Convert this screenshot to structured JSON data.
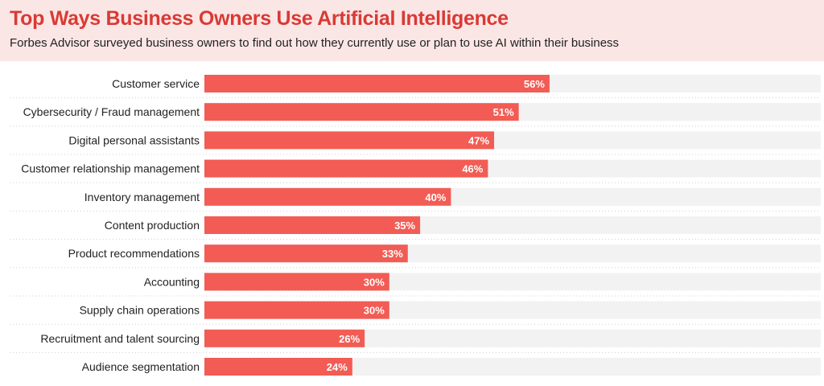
{
  "header": {
    "title": "Top Ways Business Owners Use Artificial Intelligence",
    "subtitle": "Forbes Advisor surveyed business owners to find out how they currently use or plan to use AI within their business"
  },
  "colors": {
    "accent": "#f25c54",
    "title": "#d93a34",
    "track": "#f2f2f2",
    "header_bg": "#fbe6e6"
  },
  "chart_data": {
    "type": "bar",
    "orientation": "horizontal",
    "title": "Top Ways Business Owners Use Artificial Intelligence",
    "subtitle": "Forbes Advisor surveyed business owners to find out how they currently use or plan to use AI within their business",
    "categories": [
      "Customer service",
      "Cybersecurity / Fraud management",
      "Digital personal assistants",
      "Customer relationship management",
      "Inventory management",
      "Content production",
      "Product recommendations",
      "Accounting",
      "Supply chain operations",
      "Recruitment and talent sourcing",
      "Audience segmentation"
    ],
    "values": [
      56,
      51,
      47,
      46,
      40,
      35,
      33,
      30,
      30,
      26,
      24
    ],
    "value_labels": [
      "56%",
      "51%",
      "47%",
      "46%",
      "40%",
      "35%",
      "33%",
      "30%",
      "30%",
      "26%",
      "24%"
    ],
    "value_unit": "%",
    "xlim": [
      0,
      100
    ],
    "grid": false,
    "legend": "none"
  }
}
